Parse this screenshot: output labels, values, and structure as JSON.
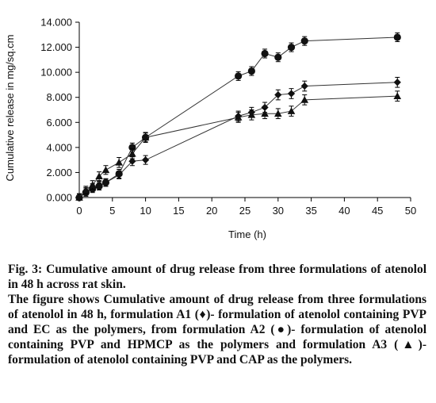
{
  "chart_data": {
    "type": "line",
    "title": "",
    "xlabel": "Time (h)",
    "ylabel": "Cumulative release in mg/sq.cm",
    "xlim": [
      0,
      50
    ],
    "ylim": [
      0,
      14
    ],
    "x_ticks": [
      "0",
      "5",
      "10",
      "15",
      "20",
      "25",
      "30",
      "35",
      "40",
      "45",
      "50"
    ],
    "y_ticks": [
      "0.000",
      "2.000",
      "4.000",
      "6.000",
      "8.000",
      "10.000",
      "12.000",
      "14.000"
    ],
    "grid": false,
    "legend": "none",
    "series": [
      {
        "marker": "diamond",
        "x": [
          0,
          1,
          2,
          3,
          4,
          6,
          8,
          10,
          24,
          26,
          28,
          30,
          32,
          34,
          48
        ],
        "y": [
          0.0,
          0.5,
          0.8,
          1.0,
          1.2,
          1.8,
          2.9,
          3.0,
          6.5,
          6.8,
          7.2,
          8.2,
          8.3,
          8.9,
          9.2
        ],
        "err": [
          0.3,
          0.3,
          0.3,
          0.3,
          0.3,
          0.3,
          0.35,
          0.35,
          0.4,
          0.4,
          0.4,
          0.4,
          0.4,
          0.4,
          0.4
        ]
      },
      {
        "marker": "circle",
        "x": [
          0,
          1,
          2,
          3,
          4,
          6,
          8,
          10,
          24,
          26,
          28,
          30,
          32,
          34,
          48
        ],
        "y": [
          0.0,
          0.4,
          0.7,
          0.9,
          1.2,
          1.9,
          4.0,
          4.8,
          9.7,
          10.1,
          11.5,
          11.2,
          12.0,
          12.5,
          12.8
        ],
        "err": [
          0.3,
          0.3,
          0.3,
          0.3,
          0.3,
          0.35,
          0.35,
          0.35,
          0.35,
          0.35,
          0.35,
          0.35,
          0.35,
          0.35,
          0.35
        ]
      },
      {
        "marker": "triangle",
        "x": [
          0,
          1,
          2,
          3,
          4,
          6,
          8,
          10,
          24,
          26,
          28,
          30,
          32,
          34,
          48
        ],
        "y": [
          0.0,
          0.6,
          1.0,
          1.7,
          2.2,
          2.8,
          3.5,
          4.8,
          6.4,
          6.6,
          6.7,
          6.7,
          6.9,
          7.8,
          8.1
        ],
        "err": [
          0.3,
          0.3,
          0.35,
          0.35,
          0.35,
          0.4,
          0.4,
          0.4,
          0.4,
          0.4,
          0.4,
          0.4,
          0.4,
          0.4,
          0.4
        ]
      }
    ]
  },
  "caption": {
    "title": "Fig. 3: Cumulative amount of drug release from three formulations of atenolol in 48 h across rat skin.",
    "body": "The figure shows Cumulative amount of drug release from three formulations of atenolol in 48 h, formulation A1 (♦)- formulation of atenolol containing PVP and EC as the polymers, from formulation A2 (●)- formulation of atenolol containing PVP and HPMCP as the polymers and formulation A3 (▲)- formulation of atenolol containing PVP and CAP as the polymers."
  }
}
